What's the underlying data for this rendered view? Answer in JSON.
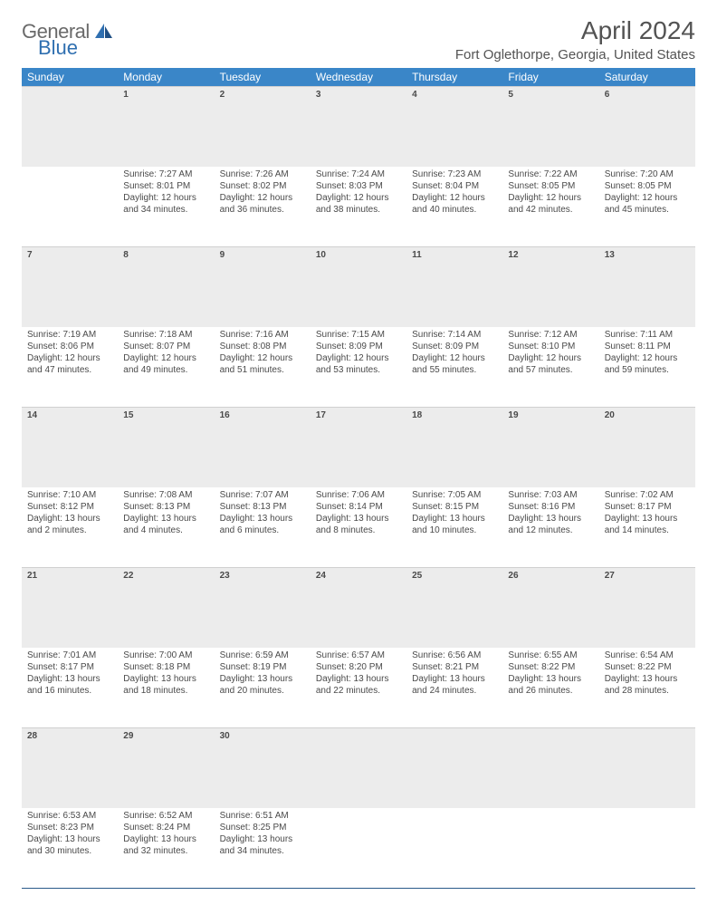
{
  "brand": {
    "part1": "General",
    "part2": "Blue"
  },
  "title": "April 2024",
  "location": "Fort Oglethorpe, Georgia, United States",
  "colors": {
    "header_bg": "#3a86c8",
    "header_text": "#ffffff",
    "daynum_bg": "#ececec",
    "rule": "#2b5a8a",
    "brand_gray": "#6a6a6a",
    "brand_blue": "#2f6fb0"
  },
  "day_headers": [
    "Sunday",
    "Monday",
    "Tuesday",
    "Wednesday",
    "Thursday",
    "Friday",
    "Saturday"
  ],
  "weeks": [
    {
      "nums": [
        "",
        "1",
        "2",
        "3",
        "4",
        "5",
        "6"
      ],
      "cells": [
        {
          "sunrise": "",
          "sunset": "",
          "day1": "",
          "day2": ""
        },
        {
          "sunrise": "Sunrise: 7:27 AM",
          "sunset": "Sunset: 8:01 PM",
          "day1": "Daylight: 12 hours",
          "day2": "and 34 minutes."
        },
        {
          "sunrise": "Sunrise: 7:26 AM",
          "sunset": "Sunset: 8:02 PM",
          "day1": "Daylight: 12 hours",
          "day2": "and 36 minutes."
        },
        {
          "sunrise": "Sunrise: 7:24 AM",
          "sunset": "Sunset: 8:03 PM",
          "day1": "Daylight: 12 hours",
          "day2": "and 38 minutes."
        },
        {
          "sunrise": "Sunrise: 7:23 AM",
          "sunset": "Sunset: 8:04 PM",
          "day1": "Daylight: 12 hours",
          "day2": "and 40 minutes."
        },
        {
          "sunrise": "Sunrise: 7:22 AM",
          "sunset": "Sunset: 8:05 PM",
          "day1": "Daylight: 12 hours",
          "day2": "and 42 minutes."
        },
        {
          "sunrise": "Sunrise: 7:20 AM",
          "sunset": "Sunset: 8:05 PM",
          "day1": "Daylight: 12 hours",
          "day2": "and 45 minutes."
        }
      ]
    },
    {
      "nums": [
        "7",
        "8",
        "9",
        "10",
        "11",
        "12",
        "13"
      ],
      "cells": [
        {
          "sunrise": "Sunrise: 7:19 AM",
          "sunset": "Sunset: 8:06 PM",
          "day1": "Daylight: 12 hours",
          "day2": "and 47 minutes."
        },
        {
          "sunrise": "Sunrise: 7:18 AM",
          "sunset": "Sunset: 8:07 PM",
          "day1": "Daylight: 12 hours",
          "day2": "and 49 minutes."
        },
        {
          "sunrise": "Sunrise: 7:16 AM",
          "sunset": "Sunset: 8:08 PM",
          "day1": "Daylight: 12 hours",
          "day2": "and 51 minutes."
        },
        {
          "sunrise": "Sunrise: 7:15 AM",
          "sunset": "Sunset: 8:09 PM",
          "day1": "Daylight: 12 hours",
          "day2": "and 53 minutes."
        },
        {
          "sunrise": "Sunrise: 7:14 AM",
          "sunset": "Sunset: 8:09 PM",
          "day1": "Daylight: 12 hours",
          "day2": "and 55 minutes."
        },
        {
          "sunrise": "Sunrise: 7:12 AM",
          "sunset": "Sunset: 8:10 PM",
          "day1": "Daylight: 12 hours",
          "day2": "and 57 minutes."
        },
        {
          "sunrise": "Sunrise: 7:11 AM",
          "sunset": "Sunset: 8:11 PM",
          "day1": "Daylight: 12 hours",
          "day2": "and 59 minutes."
        }
      ]
    },
    {
      "nums": [
        "14",
        "15",
        "16",
        "17",
        "18",
        "19",
        "20"
      ],
      "cells": [
        {
          "sunrise": "Sunrise: 7:10 AM",
          "sunset": "Sunset: 8:12 PM",
          "day1": "Daylight: 13 hours",
          "day2": "and 2 minutes."
        },
        {
          "sunrise": "Sunrise: 7:08 AM",
          "sunset": "Sunset: 8:13 PM",
          "day1": "Daylight: 13 hours",
          "day2": "and 4 minutes."
        },
        {
          "sunrise": "Sunrise: 7:07 AM",
          "sunset": "Sunset: 8:13 PM",
          "day1": "Daylight: 13 hours",
          "day2": "and 6 minutes."
        },
        {
          "sunrise": "Sunrise: 7:06 AM",
          "sunset": "Sunset: 8:14 PM",
          "day1": "Daylight: 13 hours",
          "day2": "and 8 minutes."
        },
        {
          "sunrise": "Sunrise: 7:05 AM",
          "sunset": "Sunset: 8:15 PM",
          "day1": "Daylight: 13 hours",
          "day2": "and 10 minutes."
        },
        {
          "sunrise": "Sunrise: 7:03 AM",
          "sunset": "Sunset: 8:16 PM",
          "day1": "Daylight: 13 hours",
          "day2": "and 12 minutes."
        },
        {
          "sunrise": "Sunrise: 7:02 AM",
          "sunset": "Sunset: 8:17 PM",
          "day1": "Daylight: 13 hours",
          "day2": "and 14 minutes."
        }
      ]
    },
    {
      "nums": [
        "21",
        "22",
        "23",
        "24",
        "25",
        "26",
        "27"
      ],
      "cells": [
        {
          "sunrise": "Sunrise: 7:01 AM",
          "sunset": "Sunset: 8:17 PM",
          "day1": "Daylight: 13 hours",
          "day2": "and 16 minutes."
        },
        {
          "sunrise": "Sunrise: 7:00 AM",
          "sunset": "Sunset: 8:18 PM",
          "day1": "Daylight: 13 hours",
          "day2": "and 18 minutes."
        },
        {
          "sunrise": "Sunrise: 6:59 AM",
          "sunset": "Sunset: 8:19 PM",
          "day1": "Daylight: 13 hours",
          "day2": "and 20 minutes."
        },
        {
          "sunrise": "Sunrise: 6:57 AM",
          "sunset": "Sunset: 8:20 PM",
          "day1": "Daylight: 13 hours",
          "day2": "and 22 minutes."
        },
        {
          "sunrise": "Sunrise: 6:56 AM",
          "sunset": "Sunset: 8:21 PM",
          "day1": "Daylight: 13 hours",
          "day2": "and 24 minutes."
        },
        {
          "sunrise": "Sunrise: 6:55 AM",
          "sunset": "Sunset: 8:22 PM",
          "day1": "Daylight: 13 hours",
          "day2": "and 26 minutes."
        },
        {
          "sunrise": "Sunrise: 6:54 AM",
          "sunset": "Sunset: 8:22 PM",
          "day1": "Daylight: 13 hours",
          "day2": "and 28 minutes."
        }
      ]
    },
    {
      "nums": [
        "28",
        "29",
        "30",
        "",
        "",
        "",
        ""
      ],
      "cells": [
        {
          "sunrise": "Sunrise: 6:53 AM",
          "sunset": "Sunset: 8:23 PM",
          "day1": "Daylight: 13 hours",
          "day2": "and 30 minutes."
        },
        {
          "sunrise": "Sunrise: 6:52 AM",
          "sunset": "Sunset: 8:24 PM",
          "day1": "Daylight: 13 hours",
          "day2": "and 32 minutes."
        },
        {
          "sunrise": "Sunrise: 6:51 AM",
          "sunset": "Sunset: 8:25 PM",
          "day1": "Daylight: 13 hours",
          "day2": "and 34 minutes."
        },
        {
          "sunrise": "",
          "sunset": "",
          "day1": "",
          "day2": ""
        },
        {
          "sunrise": "",
          "sunset": "",
          "day1": "",
          "day2": ""
        },
        {
          "sunrise": "",
          "sunset": "",
          "day1": "",
          "day2": ""
        },
        {
          "sunrise": "",
          "sunset": "",
          "day1": "",
          "day2": ""
        }
      ]
    }
  ]
}
